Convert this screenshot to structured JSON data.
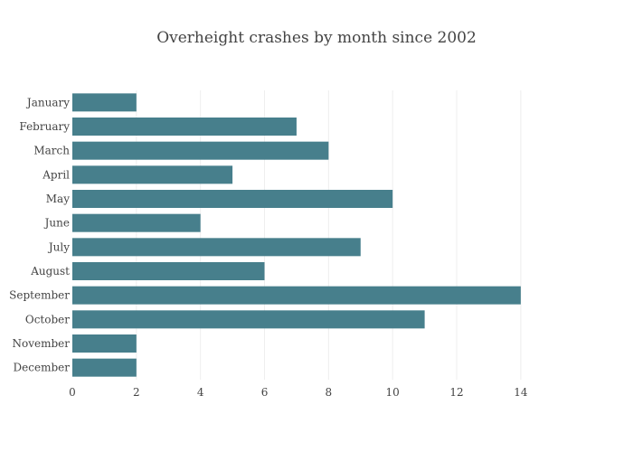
{
  "chart_data": {
    "type": "bar",
    "orientation": "horizontal",
    "title": "Overheight crashes by month since 2002",
    "xlabel": "",
    "ylabel": "",
    "categories": [
      "January",
      "February",
      "March",
      "April",
      "May",
      "June",
      "July",
      "August",
      "September",
      "October",
      "November",
      "December"
    ],
    "values": [
      2,
      7,
      8,
      5,
      10,
      4,
      9,
      6,
      14,
      11,
      2,
      2
    ],
    "xlim": [
      0,
      15.5
    ],
    "xticks": [
      0,
      2,
      4,
      6,
      8,
      10,
      12,
      14
    ],
    "grid": true,
    "bar_color": "#477f8c",
    "grid_color": "#eeeeee"
  }
}
